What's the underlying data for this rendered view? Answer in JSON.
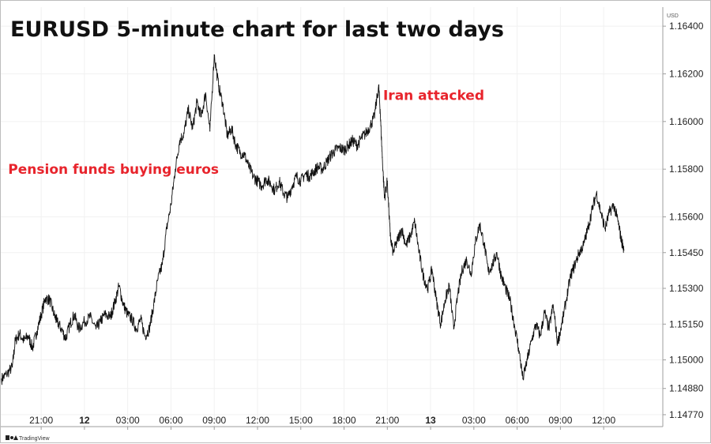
{
  "chart_data": {
    "type": "line",
    "title": "EURUSD 5-minute chart for last two days",
    "y_unit": "USD",
    "y_ticks": [
      "1.16400",
      "1.16200",
      "1.16000",
      "1.15800",
      "1.15600",
      "1.15450",
      "1.15300",
      "1.15150",
      "1.15000",
      "1.14880",
      "1.14770"
    ],
    "ylim": [
      1.1472,
      1.1648
    ],
    "x_ticks": [
      {
        "label": "21:00",
        "hours": 21,
        "bold": false
      },
      {
        "label": "12",
        "hours": 24,
        "bold": true
      },
      {
        "label": "03:00",
        "hours": 27,
        "bold": false
      },
      {
        "label": "06:00",
        "hours": 30,
        "bold": false
      },
      {
        "label": "09:00",
        "hours": 33,
        "bold": false
      },
      {
        "label": "12:00",
        "hours": 36,
        "bold": false
      },
      {
        "label": "15:00",
        "hours": 39,
        "bold": false
      },
      {
        "label": "18:00",
        "hours": 42,
        "bold": false
      },
      {
        "label": "21:00",
        "hours": 45,
        "bold": false
      },
      {
        "label": "13",
        "hours": 48,
        "bold": true
      },
      {
        "label": "03:00",
        "hours": 51,
        "bold": false
      },
      {
        "label": "06:00",
        "hours": 54,
        "bold": false
      },
      {
        "label": "09:00",
        "hours": 57,
        "bold": false
      },
      {
        "label": "12:00",
        "hours": 60,
        "bold": false
      }
    ],
    "xlim": [
      18.2,
      64.1
    ],
    "grid": true,
    "series": [
      {
        "color": "#111111",
        "points": [
          [
            18.25,
            1.1492
          ],
          [
            18.6,
            1.1494
          ],
          [
            19.0,
            1.1497
          ],
          [
            19.2,
            1.1508
          ],
          [
            19.5,
            1.1511
          ],
          [
            19.8,
            1.1508
          ],
          [
            20.1,
            1.151
          ],
          [
            20.4,
            1.1505
          ],
          [
            20.7,
            1.1512
          ],
          [
            21.0,
            1.1519
          ],
          [
            21.3,
            1.1526
          ],
          [
            21.6,
            1.1525
          ],
          [
            21.9,
            1.1519
          ],
          [
            22.1,
            1.1516
          ],
          [
            22.4,
            1.1513
          ],
          [
            22.7,
            1.1509
          ],
          [
            23.0,
            1.1515
          ],
          [
            23.3,
            1.1519
          ],
          [
            23.6,
            1.1513
          ],
          [
            24.0,
            1.1516
          ],
          [
            24.4,
            1.1518
          ],
          [
            24.8,
            1.1513
          ],
          [
            25.1,
            1.1516
          ],
          [
            25.4,
            1.1519
          ],
          [
            25.8,
            1.1518
          ],
          [
            26.1,
            1.1524
          ],
          [
            26.4,
            1.1531
          ],
          [
            26.7,
            1.1523
          ],
          [
            27.0,
            1.1519
          ],
          [
            27.3,
            1.1517
          ],
          [
            27.6,
            1.1513
          ],
          [
            27.9,
            1.1517
          ],
          [
            28.2,
            1.151
          ],
          [
            28.5,
            1.1513
          ],
          [
            28.8,
            1.1523
          ],
          [
            29.1,
            1.1534
          ],
          [
            29.4,
            1.154
          ],
          [
            29.7,
            1.1555
          ],
          [
            30.0,
            1.1565
          ],
          [
            30.3,
            1.158
          ],
          [
            30.6,
            1.1592
          ],
          [
            30.9,
            1.1595
          ],
          [
            31.2,
            1.1605
          ],
          [
            31.5,
            1.1597
          ],
          [
            31.8,
            1.1608
          ],
          [
            32.1,
            1.1602
          ],
          [
            32.4,
            1.1612
          ],
          [
            32.7,
            1.1596
          ],
          [
            33.0,
            1.1628
          ],
          [
            33.3,
            1.1615
          ],
          [
            33.6,
            1.1607
          ],
          [
            33.9,
            1.1594
          ],
          [
            34.2,
            1.1597
          ],
          [
            34.5,
            1.159
          ],
          [
            34.8,
            1.1587
          ],
          [
            35.1,
            1.1586
          ],
          [
            35.4,
            1.1581
          ],
          [
            35.7,
            1.1577
          ],
          [
            36.0,
            1.1575
          ],
          [
            36.3,
            1.1573
          ],
          [
            36.6,
            1.1576
          ],
          [
            36.9,
            1.1574
          ],
          [
            37.2,
            1.1571
          ],
          [
            37.5,
            1.1575
          ],
          [
            37.8,
            1.157
          ],
          [
            38.1,
            1.1568
          ],
          [
            38.4,
            1.1573
          ],
          [
            38.7,
            1.1577
          ],
          [
            39.0,
            1.1575
          ],
          [
            39.3,
            1.1578
          ],
          [
            39.6,
            1.1577
          ],
          [
            39.9,
            1.1579
          ],
          [
            40.2,
            1.1581
          ],
          [
            40.5,
            1.158
          ],
          [
            40.8,
            1.1583
          ],
          [
            41.1,
            1.1586
          ],
          [
            41.4,
            1.1588
          ],
          [
            41.7,
            1.1589
          ],
          [
            42.0,
            1.1588
          ],
          [
            42.3,
            1.159
          ],
          [
            42.6,
            1.1592
          ],
          [
            42.9,
            1.159
          ],
          [
            43.2,
            1.1593
          ],
          [
            43.5,
            1.1595
          ],
          [
            43.8,
            1.1598
          ],
          [
            44.1,
            1.1602
          ],
          [
            44.4,
            1.1615
          ],
          [
            44.5,
            1.1605
          ],
          [
            44.65,
            1.1585
          ],
          [
            44.8,
            1.1568
          ],
          [
            45.0,
            1.1575
          ],
          [
            45.2,
            1.1552
          ],
          [
            45.4,
            1.1545
          ],
          [
            45.7,
            1.155
          ],
          [
            46.0,
            1.1555
          ],
          [
            46.3,
            1.1548
          ],
          [
            46.6,
            1.1552
          ],
          [
            46.9,
            1.1558
          ],
          [
            47.2,
            1.1545
          ],
          [
            47.5,
            1.1535
          ],
          [
            47.8,
            1.153
          ],
          [
            48.1,
            1.1538
          ],
          [
            48.4,
            1.1525
          ],
          [
            48.7,
            1.1515
          ],
          [
            49.0,
            1.1525
          ],
          [
            49.3,
            1.1531
          ],
          [
            49.6,
            1.1513
          ],
          [
            49.9,
            1.1528
          ],
          [
            50.2,
            1.1538
          ],
          [
            50.5,
            1.1542
          ],
          [
            50.8,
            1.1536
          ],
          [
            51.1,
            1.1549
          ],
          [
            51.4,
            1.1557
          ],
          [
            51.7,
            1.1549
          ],
          [
            52.0,
            1.1537
          ],
          [
            52.3,
            1.154
          ],
          [
            52.6,
            1.1545
          ],
          [
            52.9,
            1.1535
          ],
          [
            53.2,
            1.153
          ],
          [
            53.5,
            1.1525
          ],
          [
            53.8,
            1.1515
          ],
          [
            54.1,
            1.1505
          ],
          [
            54.4,
            1.1492
          ],
          [
            54.7,
            1.15
          ],
          [
            55.0,
            1.1508
          ],
          [
            55.3,
            1.1515
          ],
          [
            55.6,
            1.151
          ],
          [
            55.9,
            1.152
          ],
          [
            56.2,
            1.1513
          ],
          [
            56.5,
            1.1523
          ],
          [
            56.8,
            1.1507
          ],
          [
            57.1,
            1.1515
          ],
          [
            57.4,
            1.1525
          ],
          [
            57.7,
            1.1535
          ],
          [
            58.0,
            1.154
          ],
          [
            58.3,
            1.1545
          ],
          [
            58.6,
            1.1548
          ],
          [
            58.9,
            1.1555
          ],
          [
            59.2,
            1.1563
          ],
          [
            59.5,
            1.157
          ],
          [
            59.8,
            1.1562
          ],
          [
            60.1,
            1.1555
          ],
          [
            60.4,
            1.1562
          ],
          [
            60.7,
            1.1565
          ],
          [
            61.0,
            1.1558
          ],
          [
            61.2,
            1.1551
          ],
          [
            61.4,
            1.1546
          ]
        ]
      }
    ],
    "annotations": [
      {
        "text": "Iran attacked",
        "hours": 44.6,
        "value": 1.1611
      },
      {
        "text": "Pension funds buying euros",
        "hours": 18.6,
        "value": 1.158
      }
    ]
  },
  "watermark": {
    "brand": "TradingView"
  }
}
